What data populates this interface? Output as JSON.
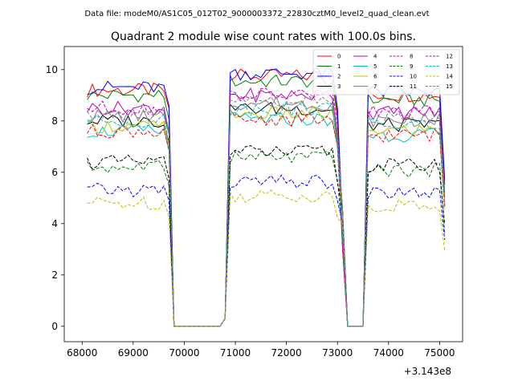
{
  "figure": {
    "suptitle": "Data file: modeM0/AS1C05_012T02_9000003372_22830cztM0_level2_quad_clean.evt",
    "title": "Quadrant 2 module wise count rates with 100.0s bins.",
    "offset_label": "+3.143e8"
  },
  "chart_data": {
    "type": "line",
    "title": "Quadrant 2 module wise count rates with 100.0s bins.",
    "xlabel": "",
    "ylabel": "",
    "x_offset": 314300000,
    "xlim": [
      67650,
      75450
    ],
    "ylim": [
      -0.6,
      10.9
    ],
    "xticks": [
      68000,
      69000,
      70000,
      71000,
      72000,
      73000,
      74000,
      75000
    ],
    "xtick_labels": [
      "68000",
      "69000",
      "70000",
      "71000",
      "72000",
      "73000",
      "74000",
      "75000"
    ],
    "yticks": [
      0,
      2,
      4,
      6,
      8,
      10
    ],
    "ytick_labels": [
      "0",
      "2",
      "4",
      "6",
      "8",
      "10"
    ],
    "grid": false,
    "legend_position": "top-right",
    "legend_columns": 4,
    "bins": {
      "segment_1": {
        "start": 68100,
        "end": 69700,
        "step": 100
      },
      "gap_1": {
        "start": 69800,
        "end": 70700,
        "value": 0
      },
      "segment_2": {
        "start": 70900,
        "end": 72900,
        "step": 100
      },
      "gap_2": {
        "start": 73200,
        "end": 73500,
        "value": 0
      },
      "segment_3": {
        "start": 73600,
        "end": 75100,
        "step": 100
      }
    },
    "series": [
      {
        "name": "0",
        "color": "#ff0000",
        "dash": "solid",
        "level": 9.2
      },
      {
        "name": "1",
        "color": "#008000",
        "dash": "solid",
        "level": 9.0
      },
      {
        "name": "2",
        "color": "#0000ff",
        "dash": "solid",
        "level": 9.3
      },
      {
        "name": "3",
        "color": "#000000",
        "dash": "solid",
        "level": 8.0
      },
      {
        "name": "4",
        "color": "#bf00bf",
        "dash": "solid",
        "level": 8.5
      },
      {
        "name": "5",
        "color": "#00bfbf",
        "dash": "solid",
        "level": 7.6
      },
      {
        "name": "6",
        "color": "#bfbf00",
        "dash": "solid",
        "level": 7.8
      },
      {
        "name": "7",
        "color": "#808080",
        "dash": "solid",
        "level": 8.2
      },
      {
        "name": "8",
        "color": "#ff0000",
        "dash": "dashed",
        "level": 7.6
      },
      {
        "name": "9",
        "color": "#008000",
        "dash": "dashed",
        "level": 6.2
      },
      {
        "name": "10",
        "color": "#0000ff",
        "dash": "dashed",
        "level": 5.3
      },
      {
        "name": "11",
        "color": "#000000",
        "dash": "dashed",
        "level": 6.4
      },
      {
        "name": "12",
        "color": "#bf00bf",
        "dash": "dashed",
        "level": 8.5
      },
      {
        "name": "13",
        "color": "#00bfbf",
        "dash": "dashed",
        "level": 8.0
      },
      {
        "name": "14",
        "color": "#bfbf00",
        "dash": "dashed",
        "level": 4.8
      },
      {
        "name": "15",
        "color": "#808080",
        "dash": "dashed",
        "level": 8.3
      }
    ]
  }
}
